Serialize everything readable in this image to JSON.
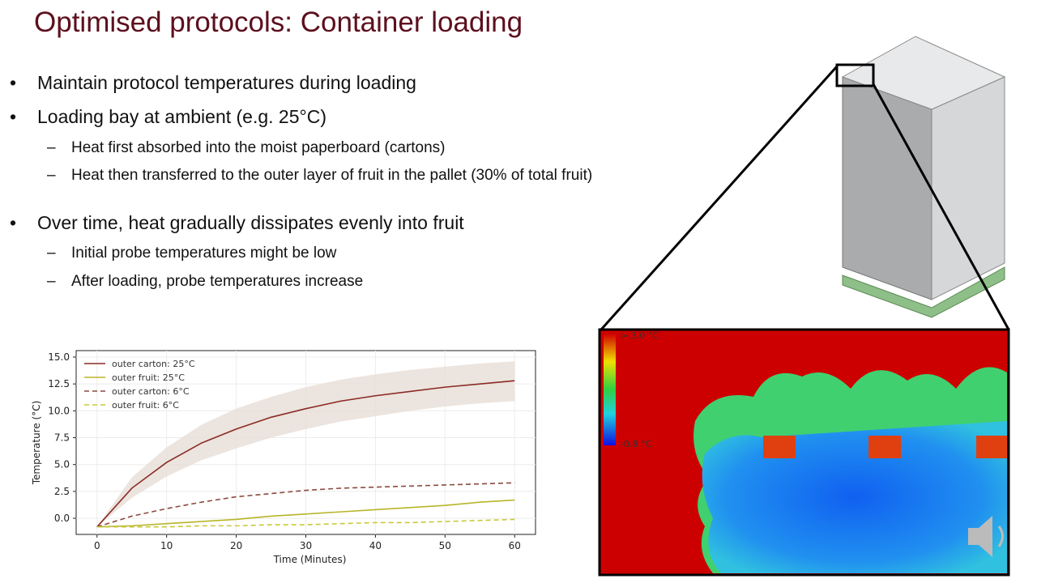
{
  "slide": {
    "title": "Optimised protocols: Container loading",
    "bullets": [
      {
        "text": "Maintain protocol temperatures during loading",
        "sub": []
      },
      {
        "text": "Loading bay at ambient (e.g. 25°C)",
        "sub": [
          "Heat first absorbed into the moist paperboard (cartons)",
          "Heat then transferred to the outer layer of fruit in the pallet (30% of total fruit)"
        ]
      },
      {
        "text": "Over time, heat gradually dissipates evenly into fruit",
        "sub": [
          "Initial probe temperatures might be low",
          "After loading, probe temperatures increase"
        ]
      }
    ],
    "heatmap_max_label": "> 3.0 °C",
    "heatmap_min_label": "-0.8 °C"
  },
  "chart_data": {
    "type": "line",
    "x_label": "Time (Minutes)",
    "y_label": "Temperature (°C)",
    "x": [
      0,
      5,
      10,
      15,
      20,
      25,
      30,
      35,
      40,
      45,
      50,
      55,
      60
    ],
    "series": [
      {
        "name": "outer carton: 25°C",
        "color": "#8b2a24",
        "dashed": false,
        "values": [
          -0.8,
          2.8,
          5.2,
          7.0,
          8.3,
          9.4,
          10.2,
          10.9,
          11.4,
          11.8,
          12.2,
          12.5,
          12.8
        ],
        "band_lower": [
          -0.8,
          1.9,
          3.9,
          5.4,
          6.5,
          7.5,
          8.3,
          9.0,
          9.5,
          10.0,
          10.4,
          10.7,
          10.9
        ],
        "band_upper": [
          -0.8,
          3.8,
          6.6,
          8.7,
          10.2,
          11.3,
          12.2,
          12.9,
          13.4,
          13.8,
          14.1,
          14.4,
          14.6
        ],
        "band_color": "#e7ddd6"
      },
      {
        "name": "outer fruit: 25°C",
        "color": "#b8b52a",
        "dashed": false,
        "values": [
          -0.8,
          -0.7,
          -0.5,
          -0.3,
          -0.1,
          0.2,
          0.4,
          0.6,
          0.8,
          1.0,
          1.2,
          1.5,
          1.7
        ]
      },
      {
        "name": "outer carton: 6°C",
        "color": "#8b4a40",
        "dashed": true,
        "values": [
          -0.8,
          0.2,
          0.9,
          1.5,
          2.0,
          2.3,
          2.6,
          2.8,
          2.9,
          3.0,
          3.1,
          3.2,
          3.3
        ]
      },
      {
        "name": "outer fruit: 6°C",
        "color": "#c9c83a",
        "dashed": true,
        "values": [
          -0.8,
          -0.8,
          -0.8,
          -0.7,
          -0.7,
          -0.6,
          -0.6,
          -0.5,
          -0.4,
          -0.4,
          -0.3,
          -0.2,
          -0.1
        ]
      }
    ],
    "xlim": [
      -3,
      63
    ],
    "xticks": [
      0,
      10,
      20,
      30,
      40,
      50,
      60
    ],
    "ylim": [
      -1.5,
      15.6
    ],
    "yticks": [
      {
        "value": 0,
        "label": "0.0"
      },
      {
        "value": 2.5,
        "label": "2.5"
      },
      {
        "value": 5,
        "label": "5.0"
      },
      {
        "value": 7.5,
        "label": "7.5"
      },
      {
        "value": 10,
        "label": "10.0"
      },
      {
        "value": 12.5,
        "label": "12.5"
      },
      {
        "value": 15,
        "label": "15.0"
      }
    ],
    "grid": true,
    "legend": "upper-left"
  }
}
